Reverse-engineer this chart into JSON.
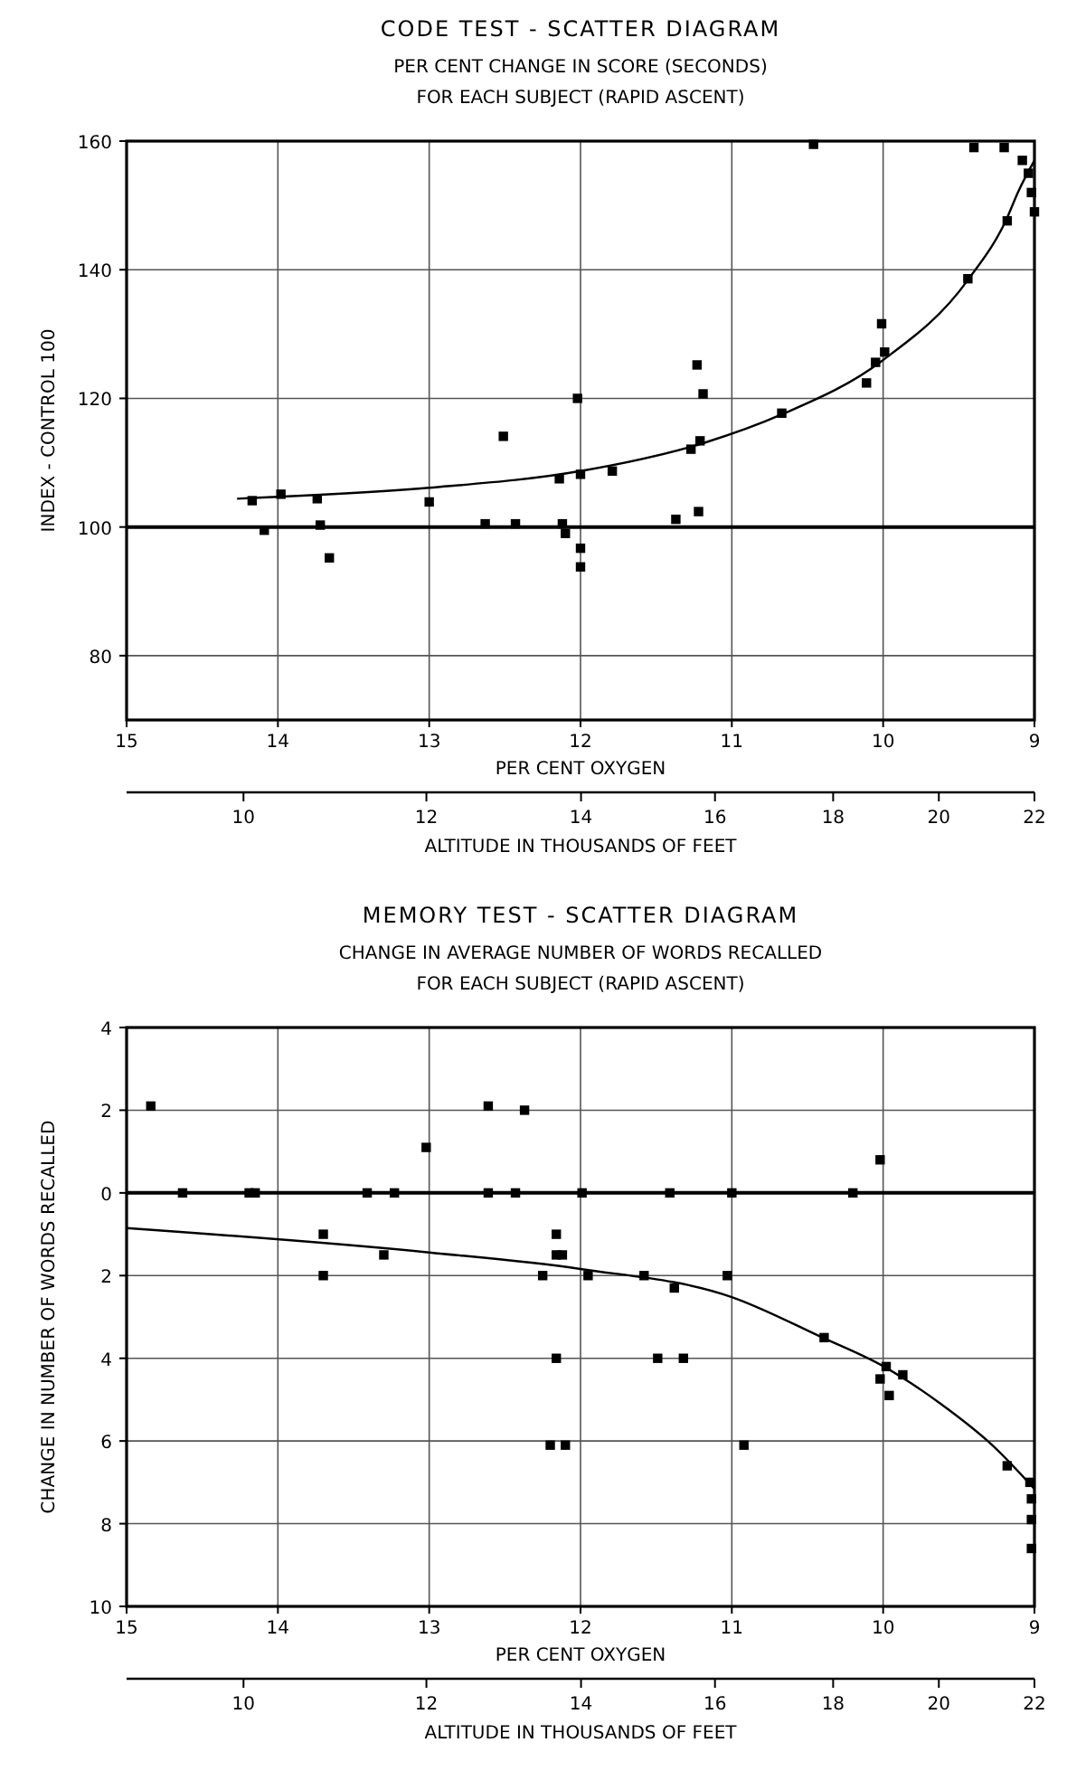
{
  "chart_data": [
    {
      "type": "scatter",
      "title": "CODE TEST - SCATTER DIAGRAM",
      "subtitle": "PER CENT CHANGE IN SCORE (SECONDS)\nFOR EACH SUBJECT (RAPID ASCENT)",
      "xlabel": "PER CENT OXYGEN",
      "ylabel": "INDEX - CONTROL 100",
      "x2label": "ALTITUDE IN THOUSANDS OF FEET",
      "xlim": [
        15,
        9
      ],
      "xticks": [
        15,
        14,
        13,
        12,
        11,
        10,
        9
      ],
      "ylim": [
        70,
        160
      ],
      "yticks": [
        80,
        100,
        120,
        140,
        160
      ],
      "x2lim": [
        8.9,
        22
      ],
      "x2ticks": [
        10,
        12,
        14,
        16,
        18,
        20,
        22
      ],
      "log": "x2",
      "grid": true,
      "marker": "square",
      "ref_lines": [
        {
          "axis": "y",
          "value": 100,
          "color": "#000000"
        }
      ],
      "series": [
        {
          "type": "scatter",
          "color": "#000000",
          "x": [
            14.17,
            13.98,
            13.74,
            14.09,
            13.72,
            13.66,
            13.0,
            12.63,
            12.43,
            12.51,
            12.14,
            12.12,
            12.1,
            12.02,
            12.0,
            12.0,
            12.0,
            11.79,
            11.37,
            11.22,
            11.27,
            11.21,
            11.23,
            11.19,
            10.67,
            10.46,
            10.11,
            10.05,
            9.99,
            10.01,
            9.44,
            9.4,
            9.2,
            9.18,
            9.08,
            9.04,
            9.02,
            9.0
          ],
          "values": [
            104.1,
            105.1,
            104.4,
            99.5,
            100.3,
            95.2,
            103.9,
            100.5,
            100.5,
            114.1,
            107.5,
            100.5,
            99,
            120,
            108.2,
            96.7,
            93.8,
            108.7,
            101.2,
            102.4,
            112.1,
            113.4,
            125.2,
            120.7,
            117.7,
            159.5,
            122.4,
            125.6,
            127.2,
            131.6,
            138.6,
            159,
            159,
            147.6,
            157,
            155,
            152,
            149
          ]
        },
        {
          "type": "line",
          "color": "#000000",
          "marker": "none",
          "x": [
            14.27,
            13.0,
            12.0,
            11.18,
            10.67,
            10.01,
            9.44,
            9.18,
            9.11,
            9.0
          ],
          "values": [
            104.4,
            106.1,
            108.7,
            113.1,
            117.5,
            125.8,
            138.4,
            148.1,
            152,
            157
          ]
        }
      ]
    },
    {
      "type": "scatter",
      "title": "MEMORY TEST - SCATTER DIAGRAM",
      "subtitle": "CHANGE IN AVERAGE NUMBER OF WORDS RECALLED\nFOR EACH SUBJECT (RAPID ASCENT)",
      "xlabel": "PER CENT OXYGEN",
      "ylabel": "CHANGE IN NUMBER OF WORDS RECALLED",
      "x2label": "ALTITUDE IN THOUSANDS OF FEET",
      "xlim": [
        15,
        9
      ],
      "xticks": [
        15,
        14,
        13,
        12,
        11,
        10,
        9
      ],
      "ylim": [
        -10,
        4
      ],
      "yticks": [
        {
          "value": -10,
          "label": "10"
        },
        {
          "value": -8,
          "label": "8"
        },
        {
          "value": -6,
          "label": "6"
        },
        {
          "value": -4,
          "label": "4"
        },
        {
          "value": -2,
          "label": "2"
        },
        0,
        2,
        4
      ],
      "x2lim": [
        8.9,
        22
      ],
      "x2ticks": [
        10,
        12,
        14,
        16,
        18,
        20,
        22
      ],
      "log": "x2",
      "grid": true,
      "marker": "square",
      "ref_lines": [
        {
          "axis": "y",
          "value": 0,
          "color": "#000000"
        }
      ],
      "series": [
        {
          "type": "scatter",
          "color": "#000000",
          "x": [
            14.84,
            14.63,
            14.19,
            14.15,
            13.7,
            13.7,
            13.41,
            13.23,
            13.3,
            13.02,
            12.61,
            12.37,
            12.61,
            12.43,
            12.25,
            12.16,
            12.16,
            12.12,
            12.16,
            11.99,
            11.95,
            11.58,
            11.41,
            11.38,
            11.49,
            11.32,
            11.03,
            11.0,
            10.39,
            10.2,
            10.02,
            9.98,
            9.87,
            10.02,
            9.96,
            12.2,
            12.1,
            10.92,
            9.18,
            9.03,
            9.02,
            9.02,
            9.02
          ],
          "values": [
            2.1,
            0,
            0,
            0,
            -1.0,
            -2.0,
            0,
            0,
            -1.5,
            1.1,
            2.1,
            2.0,
            0,
            0,
            -2.0,
            -1.0,
            -1.5,
            -1.5,
            -4.0,
            0,
            -2.0,
            -2.0,
            0,
            -2.3,
            -4,
            -4,
            -2.0,
            0,
            -3.5,
            0,
            0.8,
            -4.2,
            -4.4,
            -4.5,
            -4.9,
            -6.1,
            -6.1,
            -6.1,
            -6.6,
            -7.0,
            -7.4,
            -7.9,
            -8.6
          ]
        },
        {
          "type": "line",
          "color": "#000000",
          "marker": "none",
          "x": [
            15,
            13,
            12,
            11,
            10.4,
            10,
            9.62,
            9.27,
            9
          ],
          "values": [
            -0.85,
            -1.44,
            -1.84,
            -2.52,
            -3.5,
            -4.19,
            -5.1,
            -6.13,
            -7.16
          ]
        }
      ]
    }
  ]
}
